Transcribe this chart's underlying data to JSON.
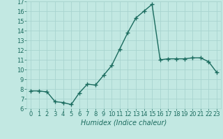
{
  "x": [
    0,
    1,
    2,
    3,
    4,
    5,
    6,
    7,
    8,
    9,
    10,
    11,
    12,
    13,
    14,
    15,
    16,
    17,
    18,
    19,
    20,
    21,
    22,
    23
  ],
  "y": [
    7.8,
    7.8,
    7.7,
    6.7,
    6.6,
    6.4,
    7.6,
    8.5,
    8.4,
    9.4,
    10.4,
    12.1,
    13.8,
    15.3,
    16.0,
    16.7,
    11.0,
    11.1,
    11.1,
    11.1,
    11.2,
    11.2,
    10.8,
    9.7
  ],
  "line_color": "#1a6b5e",
  "marker": "+",
  "markersize": 4,
  "linewidth": 1.0,
  "bg_color": "#c2e8e2",
  "grid_color": "#a8d4cf",
  "xlabel": "Humidex (Indice chaleur)",
  "ylim": [
    6,
    17
  ],
  "xlim": [
    -0.5,
    23.5
  ],
  "yticks": [
    6,
    7,
    8,
    9,
    10,
    11,
    12,
    13,
    14,
    15,
    16,
    17
  ],
  "xticks": [
    0,
    1,
    2,
    3,
    4,
    5,
    6,
    7,
    8,
    9,
    10,
    11,
    12,
    13,
    14,
    15,
    16,
    17,
    18,
    19,
    20,
    21,
    22,
    23
  ],
  "xlabel_fontsize": 7,
  "tick_fontsize": 6
}
